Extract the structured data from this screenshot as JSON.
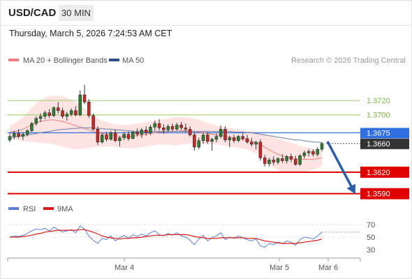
{
  "header": {
    "symbol": "USD/CAD",
    "timeframe": "30 MIN",
    "datetime": "Thursday, March 5, 2026 7:24:53 AM CET"
  },
  "chart_data": [
    {
      "type": "candlestick",
      "legend": [
        {
          "label": "MA 20 + Bollinger Bands",
          "color": "#f08080"
        },
        {
          "label": "MA 50",
          "color": "#2c4f8c"
        }
      ],
      "legend_placement": "top-left",
      "credit": "Research © 2026 Trading Central",
      "ylim": [
        1.3578,
        1.3765
      ],
      "levels": [
        {
          "value": 1.372,
          "label": "1.3720",
          "color": "#a7d27a",
          "kind": "resistance"
        },
        {
          "value": 1.37,
          "label": "1.3700",
          "color": "#a7d27a",
          "kind": "resistance"
        },
        {
          "value": 1.3675,
          "label": "1.3675",
          "color": "#2f6fe0",
          "kind": "pivot"
        },
        {
          "value": 1.366,
          "label": "1.3660",
          "color": "#333333",
          "kind": "last price"
        },
        {
          "value": 1.362,
          "label": "1.3620",
          "color": "#e00000",
          "kind": "support"
        },
        {
          "value": 1.359,
          "label": "1.3590",
          "color": "#e00000",
          "kind": "support"
        }
      ],
      "x_ticks": [
        "Mar 4",
        "Mar 5",
        "Mar 6"
      ],
      "candles": [
        [
          1.3665,
          1.3674,
          1.3662,
          1.367
        ],
        [
          1.367,
          1.3678,
          1.3666,
          1.3674
        ],
        [
          1.3674,
          1.368,
          1.3667,
          1.367
        ],
        [
          1.367,
          1.3676,
          1.3665,
          1.3673
        ],
        [
          1.3673,
          1.368,
          1.367,
          1.3678
        ],
        [
          1.3678,
          1.369,
          1.3676,
          1.3688
        ],
        [
          1.3688,
          1.3698,
          1.3685,
          1.3695
        ],
        [
          1.3695,
          1.3702,
          1.369,
          1.3698
        ],
        [
          1.3698,
          1.3706,
          1.3694,
          1.3703
        ],
        [
          1.3703,
          1.3708,
          1.3696,
          1.3699
        ],
        [
          1.3699,
          1.3712,
          1.3697,
          1.371
        ],
        [
          1.371,
          1.3718,
          1.3702,
          1.3706
        ],
        [
          1.3706,
          1.371,
          1.3695,
          1.3698
        ],
        [
          1.3698,
          1.3704,
          1.3692,
          1.3701
        ],
        [
          1.3701,
          1.3709,
          1.3698,
          1.3706
        ],
        [
          1.3706,
          1.3712,
          1.3698,
          1.37
        ],
        [
          1.37,
          1.3734,
          1.3698,
          1.3728
        ],
        [
          1.3728,
          1.3742,
          1.3715,
          1.3718
        ],
        [
          1.3718,
          1.3722,
          1.3696,
          1.3699
        ],
        [
          1.3699,
          1.3702,
          1.3678,
          1.368
        ],
        [
          1.368,
          1.3684,
          1.3658,
          1.3662
        ],
        [
          1.3662,
          1.3674,
          1.366,
          1.3672
        ],
        [
          1.3672,
          1.3676,
          1.3663,
          1.3666
        ],
        [
          1.3666,
          1.3678,
          1.3664,
          1.3675
        ],
        [
          1.3675,
          1.368,
          1.3662,
          1.3664
        ],
        [
          1.3664,
          1.367,
          1.3656,
          1.3668
        ],
        [
          1.3668,
          1.3676,
          1.3665,
          1.3673
        ],
        [
          1.3673,
          1.3677,
          1.3664,
          1.3667
        ],
        [
          1.3667,
          1.3678,
          1.3666,
          1.3676
        ],
        [
          1.3676,
          1.3681,
          1.367,
          1.3673
        ],
        [
          1.3673,
          1.3682,
          1.3668,
          1.3679
        ],
        [
          1.3679,
          1.3684,
          1.3671,
          1.3675
        ],
        [
          1.3675,
          1.3686,
          1.3672,
          1.3683
        ],
        [
          1.3683,
          1.3692,
          1.3678,
          1.3688
        ],
        [
          1.3688,
          1.3694,
          1.3678,
          1.3682
        ],
        [
          1.3682,
          1.3687,
          1.3674,
          1.3679
        ],
        [
          1.3679,
          1.3687,
          1.3676,
          1.3684
        ],
        [
          1.3684,
          1.3688,
          1.3677,
          1.368
        ],
        [
          1.368,
          1.3689,
          1.3678,
          1.3686
        ],
        [
          1.3686,
          1.369,
          1.3679,
          1.3682
        ],
        [
          1.3682,
          1.3688,
          1.3676,
          1.368
        ],
        [
          1.368,
          1.3684,
          1.367,
          1.3672
        ],
        [
          1.3672,
          1.3676,
          1.365,
          1.3655
        ],
        [
          1.3655,
          1.3668,
          1.3652,
          1.3664
        ],
        [
          1.3664,
          1.3676,
          1.366,
          1.3672
        ],
        [
          1.3672,
          1.3676,
          1.366,
          1.3663
        ],
        [
          1.3663,
          1.3668,
          1.365,
          1.3666
        ],
        [
          1.3666,
          1.3674,
          1.3662,
          1.367
        ],
        [
          1.367,
          1.3685,
          1.3667,
          1.368
        ],
        [
          1.368,
          1.3684,
          1.3662,
          1.3665
        ],
        [
          1.3665,
          1.3671,
          1.3655,
          1.3668
        ],
        [
          1.3668,
          1.3672,
          1.3661,
          1.3664
        ],
        [
          1.3664,
          1.3672,
          1.3662,
          1.367
        ],
        [
          1.367,
          1.3674,
          1.3664,
          1.3667
        ],
        [
          1.3667,
          1.3672,
          1.366,
          1.3662
        ],
        [
          1.3662,
          1.3668,
          1.3656,
          1.3659
        ],
        [
          1.3659,
          1.3664,
          1.3652,
          1.3662
        ],
        [
          1.3662,
          1.3666,
          1.3636,
          1.364
        ],
        [
          1.364,
          1.3644,
          1.3628,
          1.3632
        ],
        [
          1.3632,
          1.364,
          1.3628,
          1.3637
        ],
        [
          1.3637,
          1.3642,
          1.363,
          1.3634
        ],
        [
          1.3634,
          1.3641,
          1.3631,
          1.3639
        ],
        [
          1.3639,
          1.3645,
          1.3633,
          1.3636
        ],
        [
          1.3636,
          1.3644,
          1.3632,
          1.3642
        ],
        [
          1.3642,
          1.3646,
          1.3634,
          1.3638
        ],
        [
          1.3638,
          1.3643,
          1.3629,
          1.3631
        ],
        [
          1.3631,
          1.3645,
          1.3629,
          1.3643
        ],
        [
          1.3643,
          1.365,
          1.3639,
          1.3647
        ],
        [
          1.3647,
          1.3652,
          1.3642,
          1.3649
        ],
        [
          1.3649,
          1.3652,
          1.3642,
          1.3645
        ],
        [
          1.3645,
          1.3655,
          1.3642,
          1.3652
        ],
        [
          1.3652,
          1.3662,
          1.3649,
          1.366
        ]
      ],
      "ma20": [
        1.3676,
        1.3677,
        1.3678,
        1.368,
        1.3683,
        1.3686,
        1.3689,
        1.3691,
        1.3692,
        1.3693,
        1.3693,
        1.3692,
        1.3691,
        1.3689,
        1.3687,
        1.3685,
        1.3683,
        1.3681,
        1.3679,
        1.3677,
        1.3675,
        1.3674,
        1.3673,
        1.3672,
        1.3671,
        1.367,
        1.367,
        1.367,
        1.367,
        1.3671,
        1.3672,
        1.3673,
        1.3674,
        1.3675,
        1.3676,
        1.3676,
        1.3677,
        1.3677,
        1.3677,
        1.3678,
        1.3678,
        1.3678,
        1.3677,
        1.3676,
        1.3675,
        1.3674,
        1.3673,
        1.3672,
        1.3671,
        1.367,
        1.3669,
        1.3668,
        1.3667,
        1.3666,
        1.3665,
        1.3663,
        1.3661,
        1.3659,
        1.3655,
        1.3651,
        1.3648,
        1.3645,
        1.3643,
        1.3641,
        1.364,
        1.3639,
        1.3638,
        1.3638,
        1.3638,
        1.3638,
        1.3639,
        1.364
      ],
      "bb_upper": [
        1.3685,
        1.3688,
        1.3692,
        1.3697,
        1.3703,
        1.371,
        1.3716,
        1.3721,
        1.3724,
        1.3726,
        1.3727,
        1.3727,
        1.3726,
        1.3724,
        1.3721,
        1.3718,
        1.3714,
        1.3709,
        1.3704,
        1.3699,
        1.3695,
        1.3692,
        1.369,
        1.3688,
        1.3687,
        1.3686,
        1.3686,
        1.3686,
        1.3687,
        1.3688,
        1.3689,
        1.369,
        1.3691,
        1.3692,
        1.3693,
        1.3694,
        1.3695,
        1.3696,
        1.3697,
        1.3697,
        1.3697,
        1.3696,
        1.3695,
        1.3693,
        1.3691,
        1.3689,
        1.3687,
        1.3685,
        1.3684,
        1.3683,
        1.3682,
        1.3681,
        1.368,
        1.3679,
        1.3678,
        1.3677,
        1.3676,
        1.3675,
        1.3673,
        1.3671,
        1.3669,
        1.3667,
        1.3665,
        1.3663,
        1.3661,
        1.3659,
        1.3657,
        1.3655,
        1.3654,
        1.3653,
        1.3652,
        1.3651
      ],
      "bb_lower": [
        1.3667,
        1.3666,
        1.3664,
        1.3663,
        1.3663,
        1.3662,
        1.3662,
        1.3661,
        1.366,
        1.366,
        1.3659,
        1.3657,
        1.3656,
        1.3654,
        1.3653,
        1.3652,
        1.3652,
        1.3653,
        1.3654,
        1.3655,
        1.3655,
        1.3656,
        1.3656,
        1.3656,
        1.3655,
        1.3654,
        1.3654,
        1.3654,
        1.3653,
        1.3654,
        1.3655,
        1.3656,
        1.3657,
        1.3658,
        1.3659,
        1.3658,
        1.3659,
        1.3658,
        1.3657,
        1.3659,
        1.3659,
        1.366,
        1.3659,
        1.3659,
        1.3659,
        1.3659,
        1.3659,
        1.3659,
        1.3658,
        1.3657,
        1.3656,
        1.3655,
        1.3654,
        1.3653,
        1.3652,
        1.3649,
        1.3646,
        1.3643,
        1.3637,
        1.3631,
        1.3627,
        1.3623,
        1.3621,
        1.3619,
        1.3619,
        1.3619,
        1.3619,
        1.3621,
        1.3622,
        1.3623,
        1.3626,
        1.3629
      ],
      "ma50": [
        1.3668,
        1.3669,
        1.367,
        1.3671,
        1.3672,
        1.3673,
        1.3674,
        1.3675,
        1.3676,
        1.3677,
        1.3678,
        1.3679,
        1.368,
        1.368,
        1.3681,
        1.3681,
        1.3682,
        1.3682,
        1.3682,
        1.3682,
        1.3681,
        1.3681,
        1.368,
        1.368,
        1.3679,
        1.3679,
        1.3678,
        1.3678,
        1.3677,
        1.3677,
        1.3677,
        1.3677,
        1.3677,
        1.3677,
        1.3677,
        1.3677,
        1.3677,
        1.3677,
        1.3677,
        1.3677,
        1.3677,
        1.3677,
        1.3677,
        1.3677,
        1.3677,
        1.3677,
        1.3677,
        1.3677,
        1.3677,
        1.3677,
        1.3677,
        1.3676,
        1.3676,
        1.3676,
        1.3675,
        1.3675,
        1.3674,
        1.3673,
        1.3672,
        1.3671,
        1.367,
        1.3669,
        1.3668,
        1.3667,
        1.3666,
        1.3665,
        1.3665,
        1.3664,
        1.3663,
        1.3662,
        1.3662,
        1.3661
      ],
      "forecast_arrow": {
        "from": 1.3661,
        "to": 1.359
      }
    },
    {
      "type": "line",
      "legend": [
        {
          "label": "RSI",
          "color": "#5b7fd6"
        },
        {
          "label": "9MA",
          "color": "#d81b1b"
        }
      ],
      "ylim": [
        20,
        80
      ],
      "y_ticks": [
        70,
        50,
        30
      ],
      "rsi": [
        50,
        52,
        51,
        53,
        56,
        60,
        63,
        62,
        64,
        60,
        66,
        62,
        58,
        60,
        62,
        57,
        68,
        63,
        52,
        45,
        40,
        48,
        46,
        52,
        44,
        49,
        53,
        48,
        54,
        51,
        55,
        52,
        57,
        60,
        54,
        52,
        56,
        53,
        57,
        52,
        50,
        45,
        38,
        47,
        53,
        44,
        49,
        52,
        57,
        46,
        50,
        48,
        52,
        49,
        46,
        44,
        47,
        36,
        34,
        40,
        38,
        42,
        40,
        44,
        42,
        37,
        46,
        50,
        49,
        47,
        52,
        58
      ],
      "rsi_ma": [
        50,
        50,
        50,
        51,
        52,
        53,
        55,
        56,
        58,
        59,
        60,
        61,
        61,
        61,
        61,
        61,
        62,
        62,
        60,
        58,
        55,
        52,
        50,
        49,
        48,
        47,
        48,
        48,
        49,
        49,
        50,
        51,
        52,
        53,
        53,
        53,
        54,
        54,
        54,
        54,
        54,
        53,
        51,
        50,
        49,
        48,
        48,
        48,
        49,
        49,
        49,
        49,
        49,
        49,
        48,
        48,
        48,
        46,
        44,
        43,
        42,
        41,
        40,
        40,
        40,
        40,
        41,
        42,
        43,
        44,
        45,
        47
      ]
    }
  ]
}
